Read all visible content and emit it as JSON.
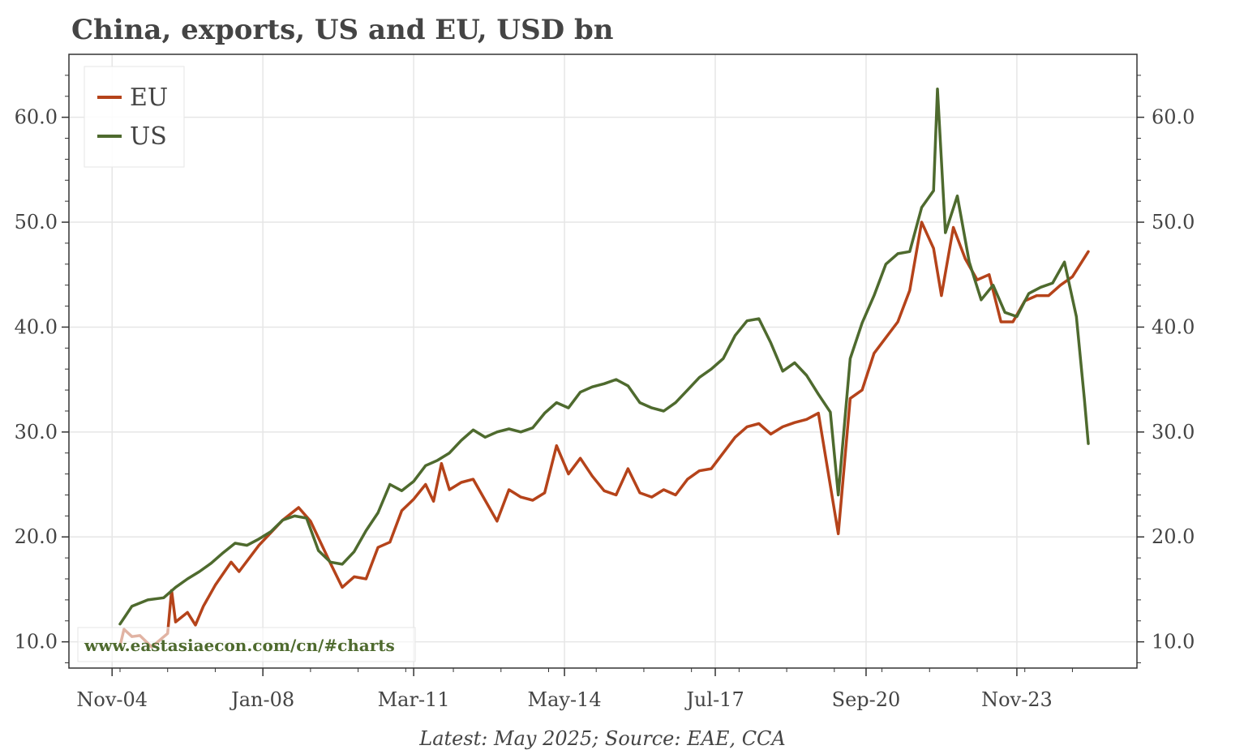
{
  "title": "China, exports, US and EU, USD bn",
  "caption": "Latest: May 2025; Source: EAE, CCA",
  "watermark": "www.eastasiaecon.com/cn/#charts",
  "colors": {
    "EU": "#b5431a",
    "US": "#4e6a2e",
    "grid": "#e6e6e6",
    "axis": "#333333",
    "text": "#444444"
  },
  "chart_data": {
    "type": "line",
    "x_start": "2005-01",
    "x_end": "2025-05",
    "x_ticks": [
      {
        "date": "2004-11",
        "label": "Nov-04"
      },
      {
        "date": "2008-01",
        "label": "Jan-08"
      },
      {
        "date": "2011-03",
        "label": "Mar-11"
      },
      {
        "date": "2014-05",
        "label": "May-14"
      },
      {
        "date": "2017-07",
        "label": "Jul-17"
      },
      {
        "date": "2020-09",
        "label": "Sep-20"
      },
      {
        "date": "2023-11",
        "label": "Nov-23"
      }
    ],
    "ylim": [
      7.5,
      66
    ],
    "y_ticks": [
      "10.0",
      "20.0",
      "30.0",
      "40.0",
      "50.0",
      "60.0"
    ],
    "grid": true,
    "legend_position": "top-left",
    "series": [
      {
        "name": "EU",
        "points": [
          [
            "2005-01",
            9.6
          ],
          [
            "2005-02",
            11.2
          ],
          [
            "2005-04",
            10.5
          ],
          [
            "2005-06",
            10.6
          ],
          [
            "2005-09",
            9.5
          ],
          [
            "2006-01",
            10.8
          ],
          [
            "2006-02",
            14.9
          ],
          [
            "2006-03",
            11.9
          ],
          [
            "2006-06",
            12.8
          ],
          [
            "2006-08",
            11.6
          ],
          [
            "2006-10",
            13.4
          ],
          [
            "2007-01",
            15.4
          ],
          [
            "2007-05",
            17.6
          ],
          [
            "2007-07",
            16.7
          ],
          [
            "2007-12",
            19.2
          ],
          [
            "2008-06",
            21.6
          ],
          [
            "2008-10",
            22.8
          ],
          [
            "2009-01",
            21.5
          ],
          [
            "2009-06",
            17.5
          ],
          [
            "2009-09",
            15.2
          ],
          [
            "2009-12",
            16.2
          ],
          [
            "2010-03",
            16.0
          ],
          [
            "2010-06",
            19.0
          ],
          [
            "2010-09",
            19.5
          ],
          [
            "2010-12",
            22.5
          ],
          [
            "2011-03",
            23.6
          ],
          [
            "2011-06",
            25.0
          ],
          [
            "2011-08",
            23.4
          ],
          [
            "2011-10",
            27.0
          ],
          [
            "2011-12",
            24.5
          ],
          [
            "2012-03",
            25.2
          ],
          [
            "2012-06",
            25.5
          ],
          [
            "2012-09",
            23.5
          ],
          [
            "2012-12",
            21.5
          ],
          [
            "2013-03",
            24.5
          ],
          [
            "2013-06",
            23.8
          ],
          [
            "2013-09",
            23.5
          ],
          [
            "2013-12",
            24.2
          ],
          [
            "2014-03",
            28.7
          ],
          [
            "2014-06",
            26.0
          ],
          [
            "2014-09",
            27.5
          ],
          [
            "2014-12",
            25.8
          ],
          [
            "2015-03",
            24.4
          ],
          [
            "2015-06",
            24.0
          ],
          [
            "2015-09",
            26.5
          ],
          [
            "2015-12",
            24.2
          ],
          [
            "2016-03",
            23.8
          ],
          [
            "2016-06",
            24.5
          ],
          [
            "2016-09",
            24.0
          ],
          [
            "2016-12",
            25.5
          ],
          [
            "2017-03",
            26.3
          ],
          [
            "2017-06",
            26.5
          ],
          [
            "2017-09",
            28.0
          ],
          [
            "2017-12",
            29.5
          ],
          [
            "2018-03",
            30.5
          ],
          [
            "2018-06",
            30.8
          ],
          [
            "2018-09",
            29.8
          ],
          [
            "2018-12",
            30.5
          ],
          [
            "2019-03",
            30.9
          ],
          [
            "2019-06",
            31.2
          ],
          [
            "2019-09",
            31.8
          ],
          [
            "2020-02",
            20.3
          ],
          [
            "2020-05",
            33.2
          ],
          [
            "2020-08",
            34.0
          ],
          [
            "2020-11",
            37.5
          ],
          [
            "2021-02",
            39.0
          ],
          [
            "2021-05",
            40.5
          ],
          [
            "2021-08",
            43.5
          ],
          [
            "2021-11",
            50.0
          ],
          [
            "2022-02",
            47.5
          ],
          [
            "2022-04",
            43.0
          ],
          [
            "2022-07",
            49.5
          ],
          [
            "2022-10",
            46.5
          ],
          [
            "2023-01",
            44.5
          ],
          [
            "2023-04",
            45.0
          ],
          [
            "2023-07",
            40.5
          ],
          [
            "2023-10",
            40.5
          ],
          [
            "2024-01",
            42.5
          ],
          [
            "2024-04",
            43.0
          ],
          [
            "2024-07",
            43.0
          ],
          [
            "2024-10",
            44.0
          ],
          [
            "2025-01",
            44.8
          ],
          [
            "2025-05",
            47.2
          ]
        ]
      },
      {
        "name": "US",
        "points": [
          [
            "2005-01",
            11.7
          ],
          [
            "2005-04",
            13.4
          ],
          [
            "2005-08",
            14.0
          ],
          [
            "2005-12",
            14.2
          ],
          [
            "2006-03",
            15.2
          ],
          [
            "2006-06",
            16.0
          ],
          [
            "2006-09",
            16.7
          ],
          [
            "2006-12",
            17.5
          ],
          [
            "2007-03",
            18.5
          ],
          [
            "2007-06",
            19.4
          ],
          [
            "2007-09",
            19.2
          ],
          [
            "2007-12",
            19.8
          ],
          [
            "2008-03",
            20.5
          ],
          [
            "2008-06",
            21.6
          ],
          [
            "2008-09",
            22.0
          ],
          [
            "2008-12",
            21.8
          ],
          [
            "2009-03",
            18.7
          ],
          [
            "2009-06",
            17.6
          ],
          [
            "2009-09",
            17.4
          ],
          [
            "2009-12",
            18.6
          ],
          [
            "2010-03",
            20.6
          ],
          [
            "2010-06",
            22.3
          ],
          [
            "2010-09",
            25.0
          ],
          [
            "2010-12",
            24.4
          ],
          [
            "2011-03",
            25.3
          ],
          [
            "2011-06",
            26.8
          ],
          [
            "2011-09",
            27.3
          ],
          [
            "2011-12",
            28.0
          ],
          [
            "2012-03",
            29.2
          ],
          [
            "2012-06",
            30.2
          ],
          [
            "2012-09",
            29.5
          ],
          [
            "2012-12",
            30.0
          ],
          [
            "2013-03",
            30.3
          ],
          [
            "2013-06",
            30.0
          ],
          [
            "2013-09",
            30.4
          ],
          [
            "2013-12",
            31.8
          ],
          [
            "2014-03",
            32.8
          ],
          [
            "2014-06",
            32.3
          ],
          [
            "2014-09",
            33.8
          ],
          [
            "2014-12",
            34.3
          ],
          [
            "2015-03",
            34.6
          ],
          [
            "2015-06",
            35.0
          ],
          [
            "2015-09",
            34.4
          ],
          [
            "2015-12",
            32.8
          ],
          [
            "2016-03",
            32.3
          ],
          [
            "2016-06",
            32.0
          ],
          [
            "2016-09",
            32.8
          ],
          [
            "2016-12",
            34.0
          ],
          [
            "2017-03",
            35.2
          ],
          [
            "2017-06",
            36.0
          ],
          [
            "2017-09",
            37.0
          ],
          [
            "2017-12",
            39.2
          ],
          [
            "2018-03",
            40.6
          ],
          [
            "2018-06",
            40.8
          ],
          [
            "2018-09",
            38.5
          ],
          [
            "2018-12",
            35.8
          ],
          [
            "2019-03",
            36.6
          ],
          [
            "2019-06",
            35.4
          ],
          [
            "2019-09",
            33.6
          ],
          [
            "2019-12",
            31.9
          ],
          [
            "2020-02",
            24.0
          ],
          [
            "2020-05",
            37.0
          ],
          [
            "2020-08",
            40.4
          ],
          [
            "2020-11",
            43.0
          ],
          [
            "2021-02",
            46.0
          ],
          [
            "2021-05",
            47.0
          ],
          [
            "2021-08",
            47.2
          ],
          [
            "2021-11",
            51.4
          ],
          [
            "2022-02",
            53.0
          ],
          [
            "2022-03",
            62.7
          ],
          [
            "2022-05",
            49.0
          ],
          [
            "2022-08",
            52.5
          ],
          [
            "2022-11",
            46.2
          ],
          [
            "2023-02",
            42.6
          ],
          [
            "2023-05",
            44.0
          ],
          [
            "2023-08",
            41.4
          ],
          [
            "2023-11",
            41.0
          ],
          [
            "2024-02",
            43.2
          ],
          [
            "2024-05",
            43.8
          ],
          [
            "2024-08",
            44.2
          ],
          [
            "2024-11",
            46.2
          ],
          [
            "2025-02",
            41.0
          ],
          [
            "2025-04",
            33.2
          ],
          [
            "2025-05",
            28.9
          ]
        ]
      }
    ]
  }
}
